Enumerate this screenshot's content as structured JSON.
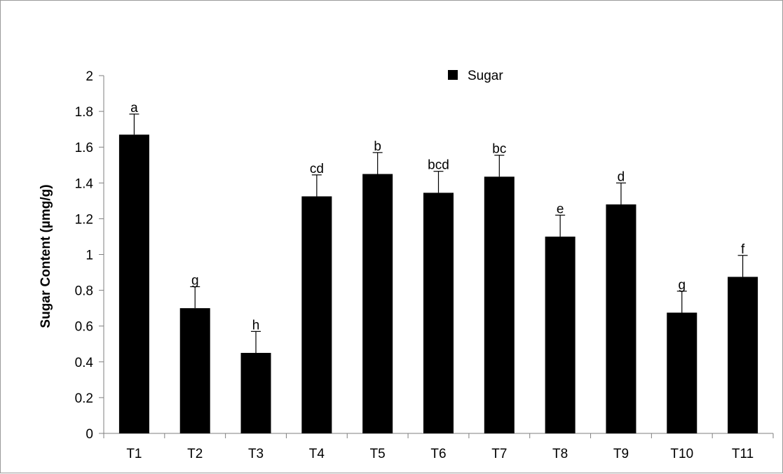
{
  "chart_data": {
    "type": "bar",
    "title": "",
    "xlabel": "",
    "ylabel": "Sugar Content (µmg/g)",
    "ylim": [
      0,
      2
    ],
    "yticks": [
      "0",
      "0.2",
      "0.4",
      "0.6",
      "0.8",
      "1",
      "1.2",
      "1.4",
      "1.6",
      "1.8",
      "2"
    ],
    "grid": false,
    "legend_position": "top-center",
    "categories": [
      "T1",
      "T2",
      "T3",
      "T4",
      "T5",
      "T6",
      "T7",
      "T8",
      "T9",
      "T10",
      "T11"
    ],
    "series": [
      {
        "name": "Sugar",
        "color": "#000000",
        "values": [
          1.67,
          0.7,
          0.45,
          1.325,
          1.45,
          1.345,
          1.435,
          1.1,
          1.28,
          0.675,
          0.875
        ],
        "error": [
          0.115,
          0.12,
          0.12,
          0.12,
          0.12,
          0.12,
          0.12,
          0.12,
          0.12,
          0.12,
          0.12
        ],
        "significance": [
          "a",
          "g",
          "h",
          "cd",
          "b",
          "bcd",
          "bc",
          "e",
          "d",
          "g",
          "f"
        ]
      }
    ]
  }
}
